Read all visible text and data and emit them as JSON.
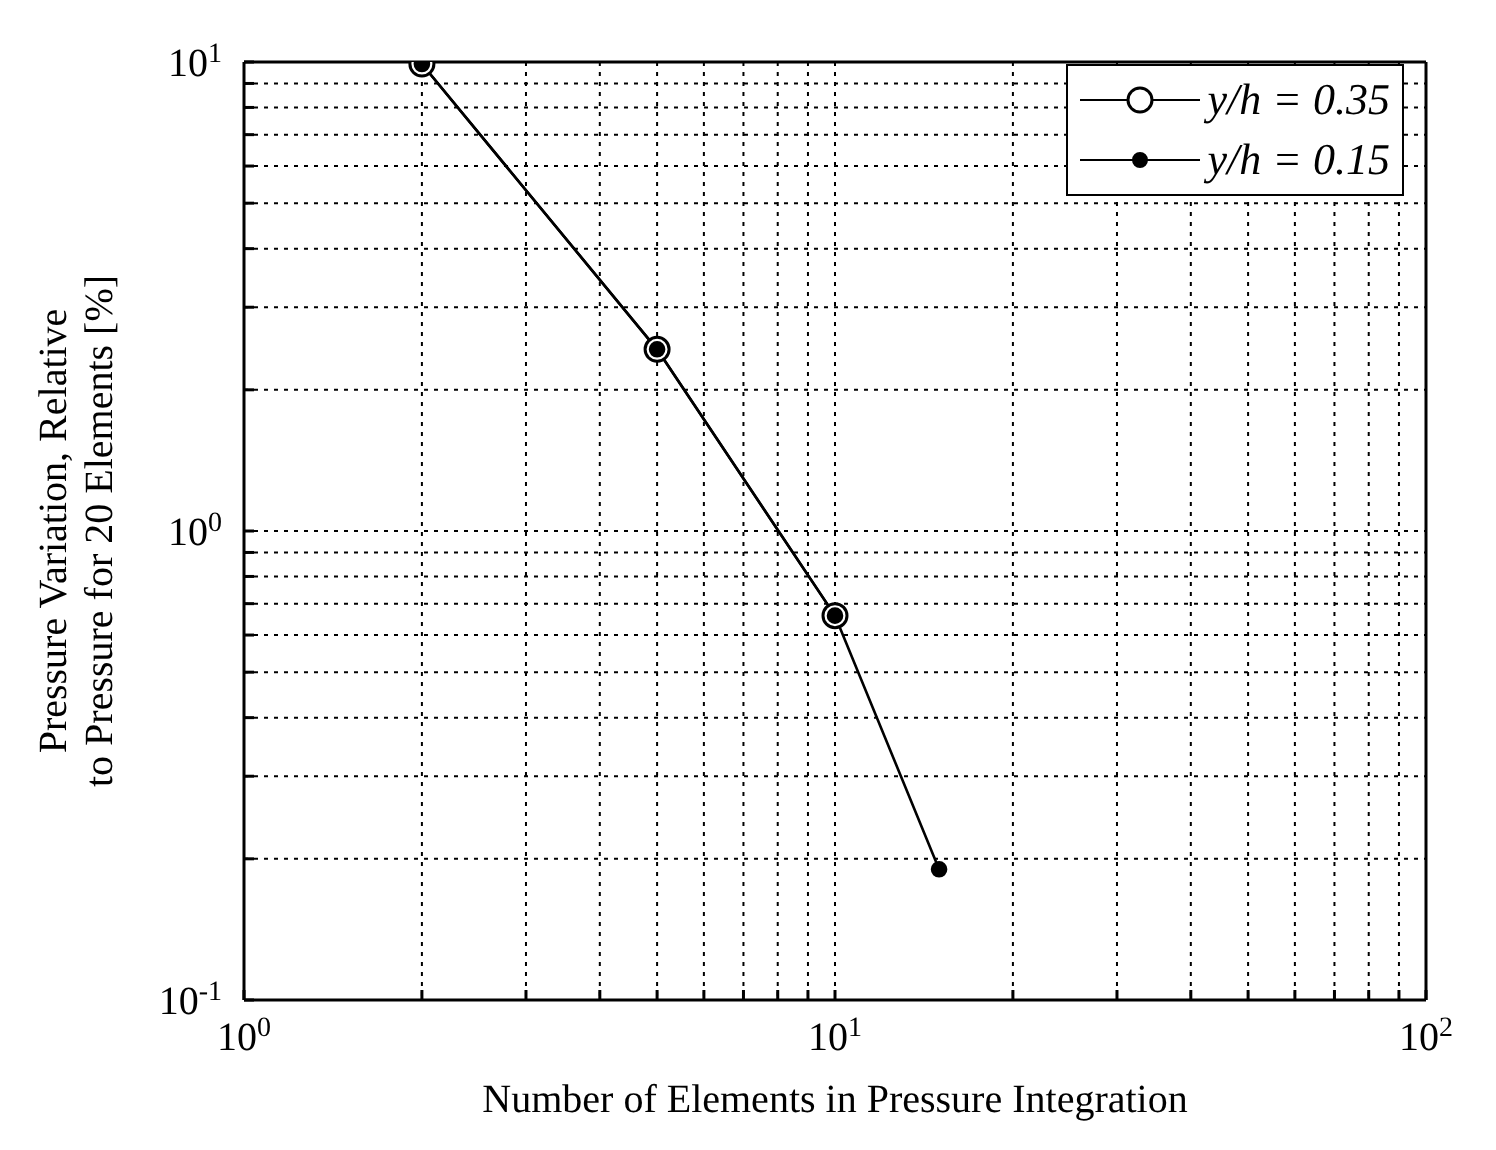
{
  "chart_data": {
    "type": "line",
    "xlabel": "Number of Elements in Pressure Integration",
    "ylabel": "Pressure Variation, Relative\nto Pressure for 20 Elements [%]",
    "log": "xy",
    "grid": true,
    "legend": "top right",
    "marker": "circle",
    "line_style": "solid",
    "xlim": [
      1,
      100
    ],
    "ylim": [
      0.1,
      10
    ],
    "xticks": [
      {
        "value": 1,
        "label": "10$^{0}$"
      },
      {
        "value": 2,
        "label": null
      },
      {
        "value": 3,
        "label": null
      },
      {
        "value": 4,
        "label": null
      },
      {
        "value": 5,
        "label": null
      },
      {
        "value": 6,
        "label": null
      },
      {
        "value": 7,
        "label": null
      },
      {
        "value": 8,
        "label": null
      },
      {
        "value": 9,
        "label": null
      },
      {
        "value": 10,
        "label": "10$^{1}$"
      },
      {
        "value": 20,
        "label": null
      },
      {
        "value": 30,
        "label": null
      },
      {
        "value": 40,
        "label": null
      },
      {
        "value": 50,
        "label": null
      },
      {
        "value": 60,
        "label": null
      },
      {
        "value": 70,
        "label": null
      },
      {
        "value": 80,
        "label": null
      },
      {
        "value": 90,
        "label": null
      },
      {
        "value": 100,
        "label": "10$^{2}$"
      }
    ],
    "yticks": [
      {
        "value": 0.1,
        "label": "10$^{-1}$"
      },
      {
        "value": 0.2,
        "label": null
      },
      {
        "value": 0.3,
        "label": null
      },
      {
        "value": 0.4,
        "label": null
      },
      {
        "value": 0.5,
        "label": null
      },
      {
        "value": 0.6,
        "label": null
      },
      {
        "value": 0.7,
        "label": null
      },
      {
        "value": 0.8,
        "label": null
      },
      {
        "value": 0.9,
        "label": null
      },
      {
        "value": 1,
        "label": "10$^{0}$"
      },
      {
        "value": 2,
        "label": null
      },
      {
        "value": 3,
        "label": null
      },
      {
        "value": 4,
        "label": null
      },
      {
        "value": 5,
        "label": null
      },
      {
        "value": 6,
        "label": null
      },
      {
        "value": 7,
        "label": null
      },
      {
        "value": 8,
        "label": null
      },
      {
        "value": 9,
        "label": null
      },
      {
        "value": 10,
        "label": "10$^{1}$"
      }
    ],
    "series": [
      {
        "name": "y/h = 0.35",
        "color": "#000000",
        "x": [
          2,
          5,
          10
        ],
        "values": [
          9.9,
          2.44,
          0.66
        ]
      },
      {
        "name": "y/h = 0.15",
        "color": "#000000",
        "x": [
          2,
          5,
          10,
          15
        ],
        "values": [
          9.9,
          2.44,
          0.66,
          0.19
        ]
      }
    ]
  }
}
